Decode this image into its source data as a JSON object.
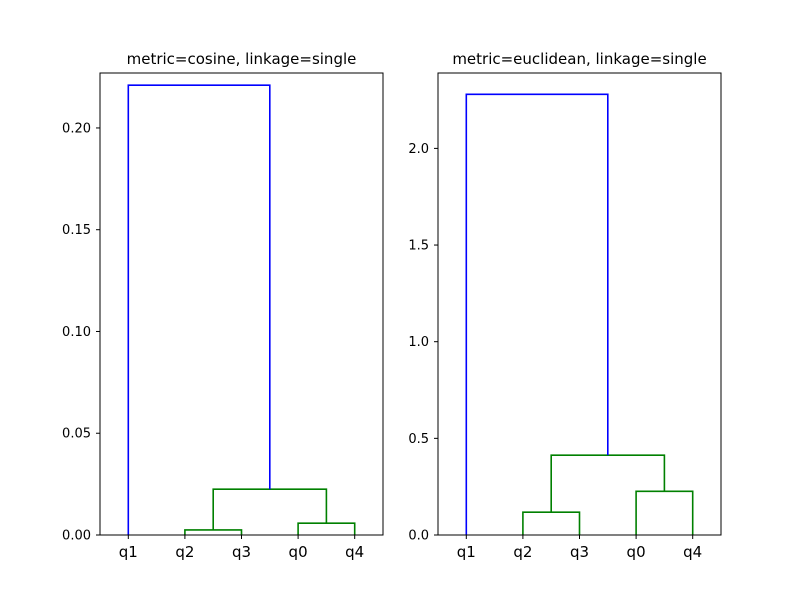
{
  "chart_data": [
    {
      "type": "dendrogram",
      "title": "metric=cosine, linkage=single",
      "leaves": [
        "q1",
        "q2",
        "q3",
        "q0",
        "q4"
      ],
      "ylim": [
        0,
        0.227
      ],
      "yticks": [
        0.0,
        0.05,
        0.1,
        0.15,
        0.2
      ],
      "ytick_labels": [
        "0.00",
        "0.05",
        "0.10",
        "0.15",
        "0.20"
      ],
      "links": [
        {
          "left": "q2",
          "right": "q3",
          "height": 0.0025,
          "color": "#008000"
        },
        {
          "left": "q0",
          "right": "q4",
          "height": 0.0058,
          "color": "#008000"
        },
        {
          "left": "(q2,q3)",
          "right": "(q0,q4)",
          "height": 0.0225,
          "color": "#008000"
        },
        {
          "left": "q1",
          "right": "(q2,q3,q0,q4)",
          "height": 0.221,
          "color": "#0000ff"
        }
      ]
    },
    {
      "type": "dendrogram",
      "title": "metric=euclidean, linkage=single",
      "leaves": [
        "q1",
        "q2",
        "q3",
        "q0",
        "q4"
      ],
      "ylim": [
        0,
        2.39
      ],
      "yticks": [
        0.0,
        0.5,
        1.0,
        1.5,
        2.0
      ],
      "ytick_labels": [
        "0.0",
        "0.5",
        "1.0",
        "1.5",
        "2.0"
      ],
      "links": [
        {
          "left": "q2",
          "right": "q3",
          "height": 0.118,
          "color": "#008000"
        },
        {
          "left": "q0",
          "right": "q4",
          "height": 0.226,
          "color": "#008000"
        },
        {
          "left": "(q2,q3)",
          "right": "(q0,q4)",
          "height": 0.413,
          "color": "#008000"
        },
        {
          "left": "q1",
          "right": "(q2,q3,q0,q4)",
          "height": 2.28,
          "color": "#0000ff"
        }
      ]
    }
  ]
}
